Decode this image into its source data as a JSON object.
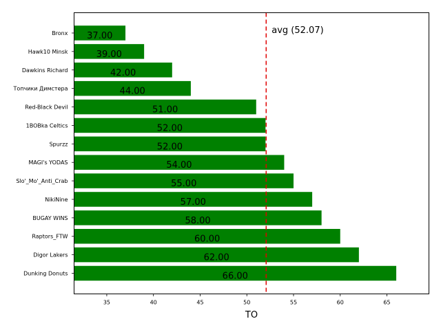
{
  "chart_data": {
    "type": "bar",
    "orientation": "horizontal",
    "categories": [
      "Bronx",
      "Hawk10 Minsk",
      "Dawkins Richard",
      "Топчики Димстера",
      "Red-Black Devil",
      "1BOBka Celtics",
      "Spurzz",
      "MAGI's YODAS",
      "Slo'_Mo'_Anti_Crab",
      "NikiNine",
      "BUGAY WINS",
      "Raptors_FTW",
      "Digor Lakers",
      "Dunking Donuts"
    ],
    "values": [
      37,
      39,
      42,
      44,
      51,
      52,
      52,
      54,
      55,
      57,
      58,
      60,
      62,
      66
    ],
    "value_labels": [
      "37.00",
      "39.00",
      "42.00",
      "44.00",
      "51.00",
      "52.00",
      "52.00",
      "54.00",
      "55.00",
      "57.00",
      "58.00",
      "60.00",
      "62.00",
      "66.00"
    ],
    "xlabel": "TO",
    "ylabel": "",
    "xlim": [
      31.5,
      69.5
    ],
    "xticks": [
      35,
      40,
      45,
      50,
      55,
      60,
      65
    ],
    "grid": false,
    "bar_color": "#008000",
    "reference_line": {
      "value": 52.07,
      "label": "avg (52.07)",
      "color": "#e00000",
      "style": "dashed"
    }
  }
}
